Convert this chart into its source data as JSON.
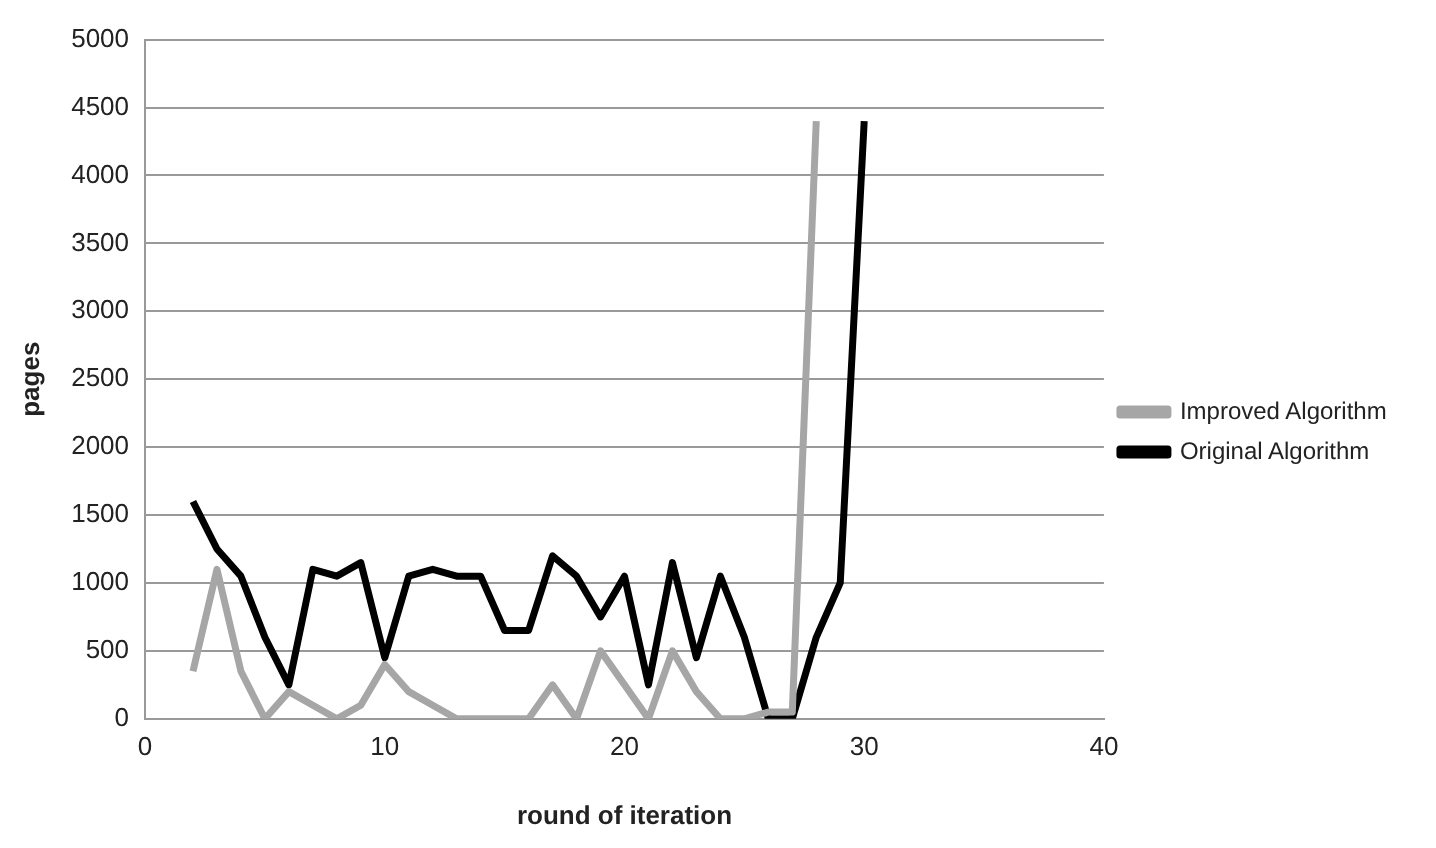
{
  "chart_data": {
    "type": "line",
    "xlabel": "round of iteration",
    "ylabel": "pages",
    "x": [
      2,
      3,
      4,
      5,
      6,
      7,
      8,
      9,
      10,
      11,
      12,
      13,
      14,
      15,
      16,
      17,
      18,
      19,
      20,
      21,
      22,
      23,
      24,
      25,
      26,
      27,
      28,
      29,
      30
    ],
    "series": [
      {
        "name": "Improved Algorithm",
        "color": "#a6a6a6",
        "x": [
          2,
          3,
          4,
          5,
          6,
          7,
          8,
          9,
          10,
          11,
          12,
          13,
          14,
          15,
          16,
          17,
          18,
          19,
          20,
          21,
          22,
          23,
          24,
          25,
          26,
          27,
          28
        ],
        "values": [
          350,
          1100,
          350,
          0,
          200,
          100,
          0,
          100,
          400,
          200,
          100,
          0,
          0,
          0,
          0,
          250,
          0,
          500,
          250,
          0,
          500,
          200,
          0,
          0,
          50,
          50,
          4400
        ]
      },
      {
        "name": "Original Algorithm",
        "color": "#000000",
        "values": [
          1600,
          1250,
          1050,
          600,
          250,
          1100,
          1050,
          1150,
          450,
          1050,
          1100,
          1050,
          1050,
          650,
          650,
          1200,
          1050,
          750,
          1050,
          250,
          1150,
          450,
          1050,
          600,
          0,
          0,
          600,
          1000,
          4400
        ]
      }
    ],
    "xlim": [
      0,
      40
    ],
    "xticks": [
      0,
      10,
      20,
      30,
      40
    ],
    "ylim": [
      0,
      5000
    ],
    "yticks": [
      0,
      500,
      1000,
      1500,
      2000,
      2500,
      3000,
      3500,
      4000,
      4500,
      5000
    ],
    "grid": "y",
    "legend": "right",
    "marker": "none",
    "line_style": "solid"
  }
}
